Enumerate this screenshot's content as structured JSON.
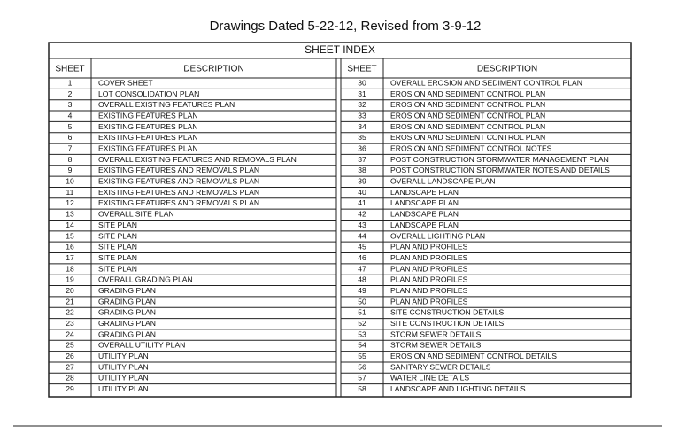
{
  "header": {
    "title": "Drawings Dated 5-22-12, Revised from 3-9-12"
  },
  "table": {
    "title": "SHEET INDEX",
    "columns": [
      "SHEET",
      "DESCRIPTION",
      "SHEET",
      "DESCRIPTION"
    ],
    "left": [
      [
        "1",
        "COVER SHEET"
      ],
      [
        "2",
        "LOT CONSOLIDATION PLAN"
      ],
      [
        "3",
        "OVERALL EXISTING FEATURES PLAN"
      ],
      [
        "4",
        "EXISTING FEATURES PLAN"
      ],
      [
        "5",
        "EXISTING FEATURES PLAN"
      ],
      [
        "6",
        "EXISTING FEATURES PLAN"
      ],
      [
        "7",
        "EXISTING FEATURES PLAN"
      ],
      [
        "8",
        "OVERALL EXISTING FEATURES AND REMOVALS PLAN"
      ],
      [
        "9",
        "EXISTING FEATURES AND REMOVALS PLAN"
      ],
      [
        "10",
        "EXISTING FEATURES AND REMOVALS PLAN"
      ],
      [
        "11",
        "EXISTING FEATURES AND REMOVALS PLAN"
      ],
      [
        "12",
        "EXISTING FEATURES AND REMOVALS PLAN"
      ],
      [
        "13",
        "OVERALL SITE PLAN"
      ],
      [
        "14",
        "SITE PLAN"
      ],
      [
        "15",
        "SITE PLAN"
      ],
      [
        "16",
        "SITE PLAN"
      ],
      [
        "17",
        "SITE PLAN"
      ],
      [
        "18",
        "SITE PLAN"
      ],
      [
        "19",
        "OVERALL GRADING PLAN"
      ],
      [
        "20",
        "GRADING PLAN"
      ],
      [
        "21",
        "GRADING PLAN"
      ],
      [
        "22",
        "GRADING PLAN"
      ],
      [
        "23",
        "GRADING PLAN"
      ],
      [
        "24",
        "GRADING PLAN"
      ],
      [
        "25",
        "OVERALL UTILITY PLAN"
      ],
      [
        "26",
        "UTILITY PLAN"
      ],
      [
        "27",
        "UTILITY PLAN"
      ],
      [
        "28",
        "UTILITY PLAN"
      ],
      [
        "29",
        "UTILITY PLAN"
      ]
    ],
    "right": [
      [
        "30",
        "OVERALL EROSION AND SEDIMENT CONTROL PLAN"
      ],
      [
        "31",
        "EROSION AND SEDIMENT CONTROL PLAN"
      ],
      [
        "32",
        "EROSION AND SEDIMENT CONTROL PLAN"
      ],
      [
        "33",
        "EROSION AND SEDIMENT CONTROL PLAN"
      ],
      [
        "34",
        "EROSION AND SEDIMENT CONTROL PLAN"
      ],
      [
        "35",
        "EROSION AND SEDIMENT CONTROL PLAN"
      ],
      [
        "36",
        "EROSION AND SEDIMENT CONTROL NOTES"
      ],
      [
        "37",
        "POST CONSTRUCTION STORMWATER MANAGEMENT PLAN"
      ],
      [
        "38",
        "POST CONSTRUCTION STORMWATER NOTES AND DETAILS"
      ],
      [
        "39",
        "OVERALL LANDSCAPE PLAN"
      ],
      [
        "40",
        "LANDSCAPE PLAN"
      ],
      [
        "41",
        "LANDSCAPE PLAN"
      ],
      [
        "42",
        "LANDSCAPE PLAN"
      ],
      [
        "43",
        "LANDSCAPE PLAN"
      ],
      [
        "44",
        "OVERALL LIGHTING PLAN"
      ],
      [
        "45",
        "PLAN AND PROFILES"
      ],
      [
        "46",
        "PLAN AND PROFILES"
      ],
      [
        "47",
        "PLAN AND PROFILES"
      ],
      [
        "48",
        "PLAN AND PROFILES"
      ],
      [
        "49",
        "PLAN AND PROFILES"
      ],
      [
        "50",
        "PLAN AND PROFILES"
      ],
      [
        "51",
        "SITE CONSTRUCTION DETAILS"
      ],
      [
        "52",
        "SITE CONSTRUCTION DETAILS"
      ],
      [
        "53",
        "STORM SEWER DETAILS"
      ],
      [
        "54",
        "STORM SEWER DETAILS"
      ],
      [
        "55",
        "EROSION AND SEDIMENT CONTROL DETAILS"
      ],
      [
        "56",
        "SANITARY SEWER DETAILS"
      ],
      [
        "57",
        "WATER LINE DETAILS"
      ],
      [
        "58",
        "LANDSCAPE AND LIGHTING DETAILS"
      ]
    ]
  }
}
